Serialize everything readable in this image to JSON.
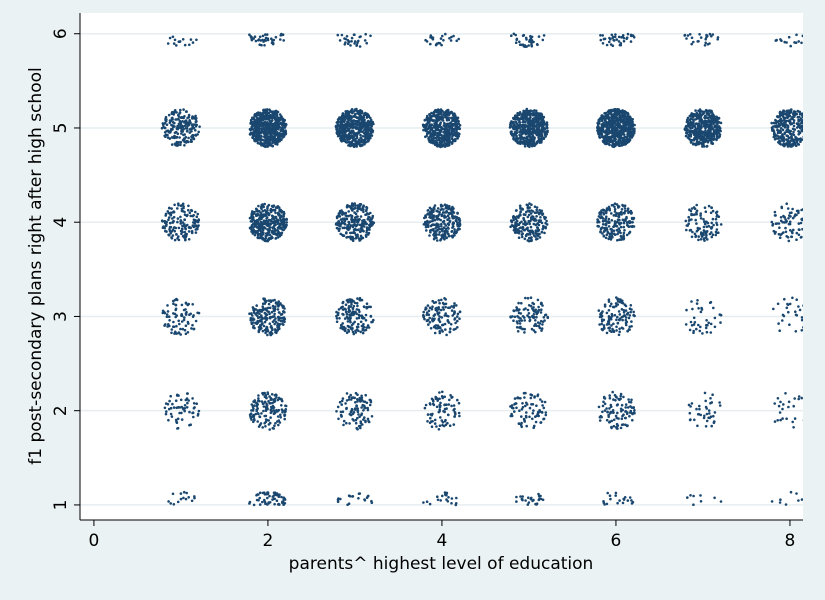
{
  "chart_data": {
    "type": "scatter",
    "x_label": "parents^ highest level of education",
    "y_label": "f1 post-secondary plans right after high school",
    "color": "#1a476f",
    "xlim": [
      -0.16,
      8.15
    ],
    "ylim": [
      0.84,
      6.22
    ],
    "xticks": [
      0,
      2,
      4,
      6,
      8
    ],
    "yticks": [
      1,
      2,
      3,
      4,
      5,
      6
    ],
    "grid": true,
    "x": [
      1,
      2,
      3,
      4,
      5,
      6,
      7,
      8,
      1,
      2,
      3,
      4,
      5,
      6,
      7,
      8,
      1,
      2,
      3,
      4,
      5,
      6,
      7,
      8,
      1,
      2,
      3,
      4,
      5,
      6,
      7,
      8,
      1,
      2,
      3,
      4,
      5,
      6,
      7,
      8,
      1,
      2,
      3,
      4,
      5,
      6,
      7,
      8
    ],
    "y": [
      6,
      6,
      6,
      6,
      6,
      6,
      6,
      6,
      5,
      5,
      5,
      5,
      5,
      5,
      5,
      5,
      4,
      4,
      4,
      4,
      4,
      4,
      4,
      4,
      3,
      3,
      3,
      3,
      3,
      3,
      3,
      3,
      2,
      2,
      2,
      2,
      2,
      2,
      2,
      2,
      1,
      1,
      1,
      1,
      1,
      1,
      1,
      1
    ],
    "counts": [
      15,
      40,
      30,
      25,
      35,
      40,
      25,
      15,
      200,
      600,
      500,
      500,
      500,
      600,
      450,
      300,
      150,
      350,
      250,
      250,
      200,
      200,
      100,
      80,
      80,
      200,
      150,
      120,
      100,
      120,
      40,
      30,
      60,
      150,
      100,
      80,
      80,
      100,
      40,
      25,
      15,
      60,
      20,
      20,
      25,
      20,
      8,
      8
    ]
  }
}
